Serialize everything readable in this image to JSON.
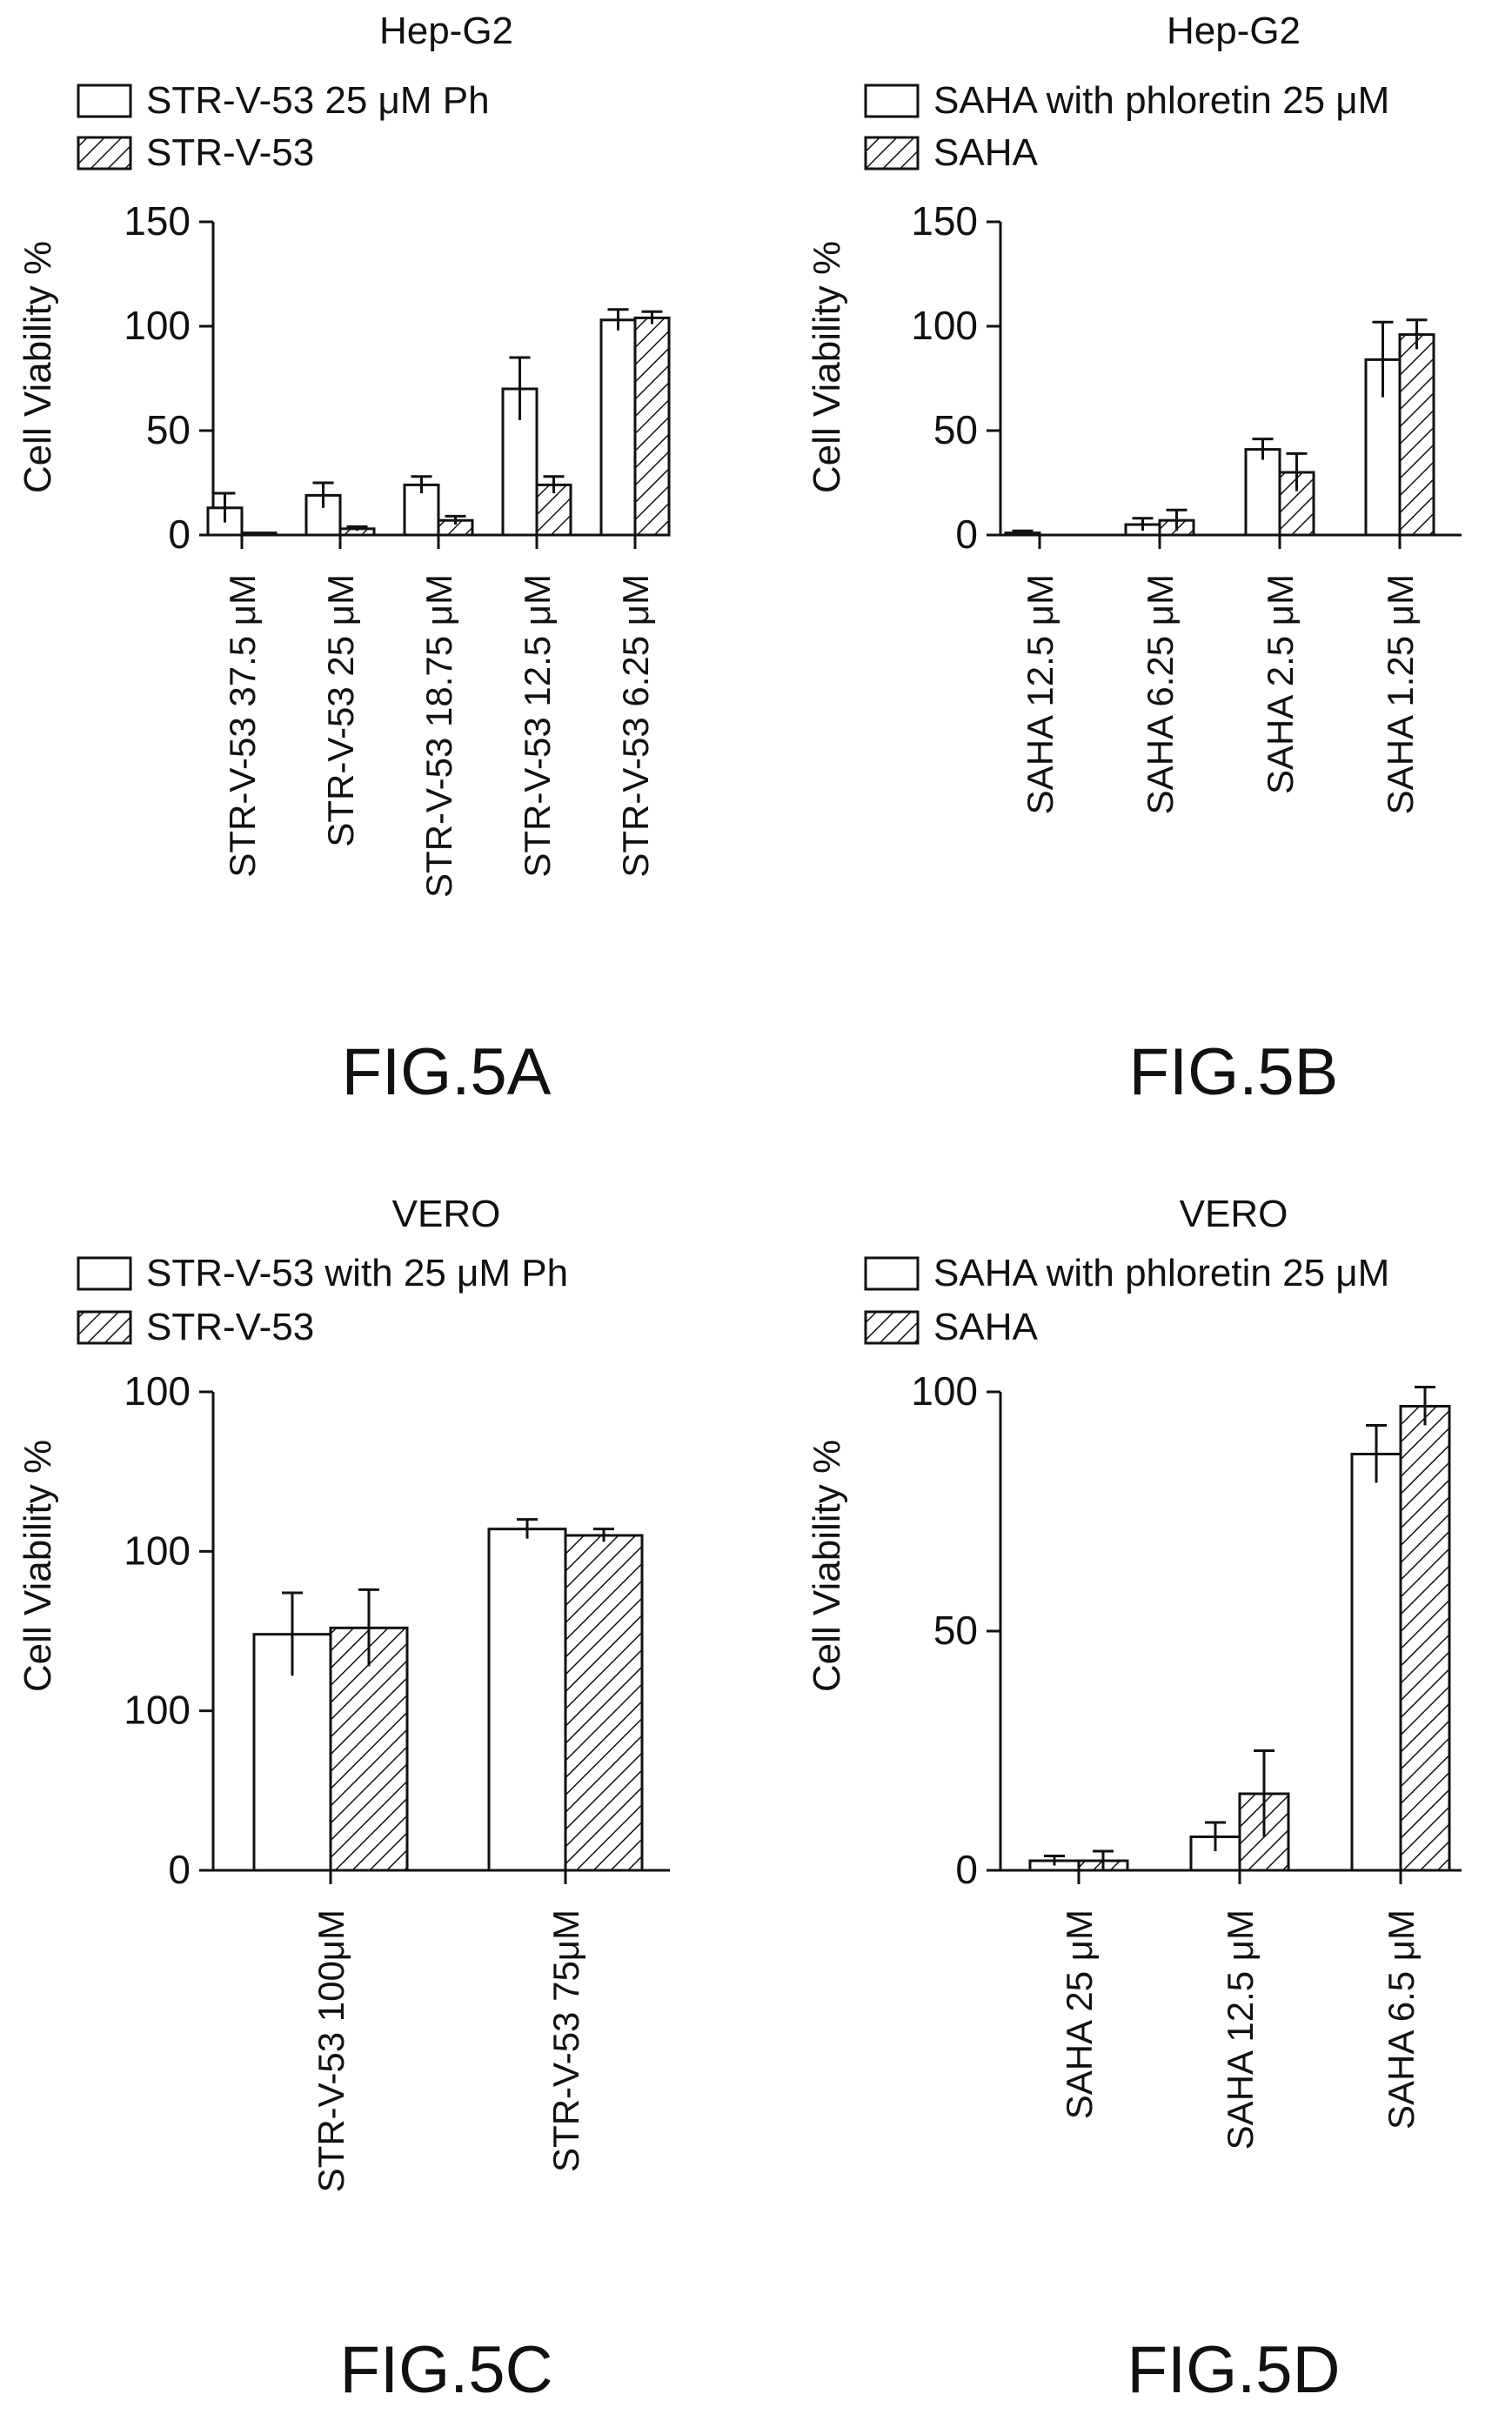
{
  "chart_data": [
    {
      "panel": "FIG.5A",
      "type": "bar",
      "title": "Hep-G2",
      "ylabel": "Cell Viability %",
      "ylim": [
        0,
        150
      ],
      "yticks": [
        "0",
        "50",
        "100",
        "150"
      ],
      "categories": [
        "STR-V-53 37.5 μM",
        "STR-V-53 25 μM",
        "STR-V-53 18.75 μM",
        "STR-V-53 12.5 μM",
        "STR-V-53 6.25 μM"
      ],
      "series": [
        {
          "name": "STR-V-53 25 μM Ph",
          "pattern": "open",
          "values": [
            13,
            19,
            24,
            70,
            103
          ],
          "errors": [
            7,
            6,
            4,
            15,
            5
          ]
        },
        {
          "name": "STR-V-53",
          "pattern": "hatched",
          "values": [
            1,
            3,
            7,
            24,
            104
          ],
          "errors": [
            0,
            1,
            2,
            4,
            3
          ]
        }
      ]
    },
    {
      "panel": "FIG.5B",
      "type": "bar",
      "title": "Hep-G2",
      "ylabel": "Cell Viability %",
      "ylim": [
        0,
        150
      ],
      "yticks": [
        "0",
        "50",
        "100",
        "150"
      ],
      "categories": [
        "SAHA 12.5 μM",
        "SAHA 6.25 μM",
        "SAHA 2.5 μM",
        "SAHA 1.25 μM"
      ],
      "series": [
        {
          "name": "SAHA with phloretin 25 μM",
          "pattern": "open",
          "values": [
            1,
            5,
            41,
            84
          ],
          "errors": [
            1,
            3,
            5,
            18
          ]
        },
        {
          "name": "SAHA",
          "pattern": "hatched",
          "values": [
            0,
            7,
            30,
            96
          ],
          "errors": [
            0,
            5,
            9,
            7
          ]
        }
      ]
    },
    {
      "panel": "FIG.5C",
      "type": "bar",
      "title": "VERO",
      "ylabel": "Cell Viability %",
      "ylim": [
        0,
        150
      ],
      "yticks": [
        "0",
        "100",
        "100",
        "100"
      ],
      "categories": [
        "STR-V-53 100μM",
        "STR-V-53 75μM"
      ],
      "series": [
        {
          "name": "STR-V-53 with 25 μM Ph",
          "pattern": "open",
          "values": [
            74,
            107
          ],
          "errors": [
            13,
            3
          ]
        },
        {
          "name": "STR-V-53",
          "pattern": "hatched",
          "values": [
            76,
            105
          ],
          "errors": [
            12,
            2
          ]
        }
      ]
    },
    {
      "panel": "FIG.5D",
      "type": "bar",
      "title": "VERO",
      "ylabel": "Cell Viability %",
      "ylim": [
        0,
        100
      ],
      "yticks": [
        "0",
        "50",
        "100"
      ],
      "categories": [
        "SAHA 25 μM",
        "SAHA 12.5 μM",
        "SAHA 6.5 μM"
      ],
      "series": [
        {
          "name": "SAHA with phloretin 25 μM",
          "pattern": "open",
          "values": [
            2,
            7,
            87
          ],
          "errors": [
            1,
            3,
            6
          ]
        },
        {
          "name": "SAHA",
          "pattern": "hatched",
          "values": [
            2,
            16,
            97
          ],
          "errors": [
            2,
            9,
            4
          ]
        }
      ]
    }
  ]
}
